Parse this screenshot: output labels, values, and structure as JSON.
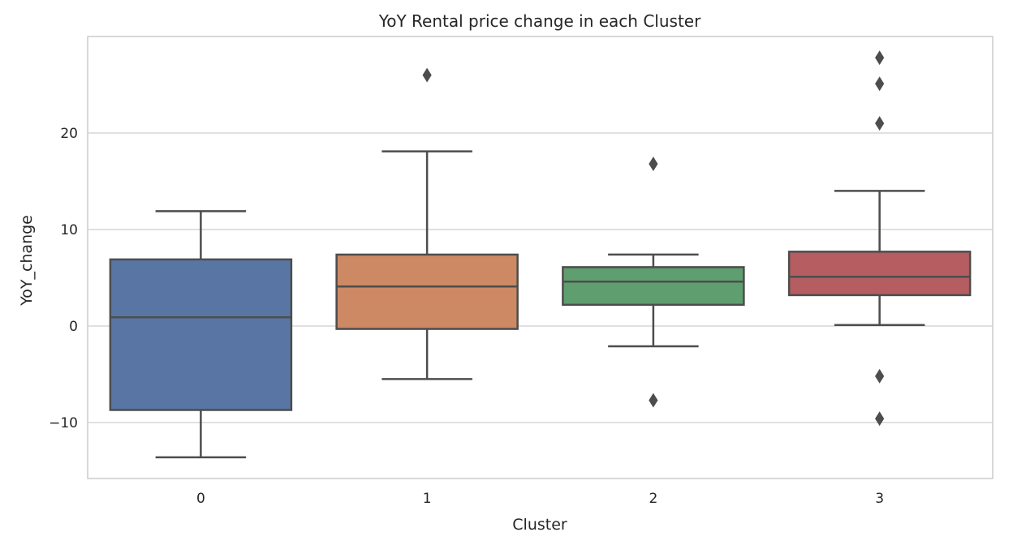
{
  "chart_data": {
    "type": "box",
    "title": "YoY Rental price change in each Cluster",
    "xlabel": "Cluster",
    "ylabel": "YoY_change",
    "categories": [
      "0",
      "1",
      "2",
      "3"
    ],
    "ylim": [
      -15.8,
      30
    ],
    "yticks": [
      -10,
      0,
      10,
      20
    ],
    "ytick_labels": [
      "−10",
      "0",
      "10",
      "20"
    ],
    "grid": true,
    "line_color": "#4d4d4d",
    "boxes": [
      {
        "category": "0",
        "whisker_low": -13.6,
        "q1": -8.7,
        "median": 0.9,
        "q3": 6.9,
        "whisker_high": 11.9,
        "outliers": [],
        "color": "#5975a4"
      },
      {
        "category": "1",
        "whisker_low": -5.5,
        "q1": -0.3,
        "median": 4.1,
        "q3": 7.4,
        "whisker_high": 18.1,
        "outliers": [
          26.0
        ],
        "color": "#cc8963"
      },
      {
        "category": "2",
        "whisker_low": -2.1,
        "q1": 2.2,
        "median": 4.6,
        "q3": 6.1,
        "whisker_high": 7.4,
        "outliers": [
          16.8,
          -7.7
        ],
        "color": "#5f9e6e"
      },
      {
        "category": "3",
        "whisker_low": 0.1,
        "q1": 3.2,
        "median": 5.1,
        "q3": 7.7,
        "whisker_high": 14.0,
        "outliers": [
          27.8,
          25.1,
          21.0,
          -5.2,
          -9.6
        ],
        "color": "#b55d60"
      }
    ]
  }
}
